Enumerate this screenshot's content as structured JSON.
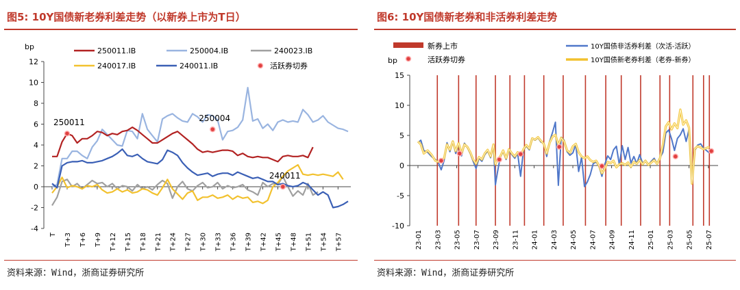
{
  "fig5": {
    "title": "图5: 10Y国债新老券利差走势（以新券上市为T日）",
    "source": "资料来源：Wind，浙商证券研究所",
    "colors": {
      "250011": "#b22222",
      "250004": "#99b4e0",
      "240023": "#a0a0a0",
      "240017": "#f2c12e",
      "240011": "#3a5fb5",
      "marker": "#e04040"
    },
    "chart_data": {
      "type": "line",
      "ylabel": "bp",
      "ylim": [
        -4,
        12
      ],
      "yticks": [
        -4,
        -2,
        0,
        2,
        4,
        6,
        8,
        10,
        12
      ],
      "xlabels": [
        "T",
        "T+3",
        "T+6",
        "T+9",
        "T+12",
        "T+15",
        "T+18",
        "T+21",
        "T+24",
        "T+27",
        "T+30",
        "T+33",
        "T+36",
        "T+39",
        "T+42",
        "T+45",
        "T+48",
        "T+51",
        "T+54",
        "T+57"
      ],
      "xmax": 59,
      "legend": [
        "250011.IB",
        "250004.IB",
        "240023.IB",
        "240017.IB",
        "240011.IB",
        "活跃券切券"
      ],
      "series": [
        {
          "name": "250011.IB",
          "key": "250011",
          "values": [
            2.9,
            2.9,
            4.3,
            5.1,
            4.9,
            4.2,
            4.6,
            4.6,
            4.9,
            5.3,
            5.2,
            4.9,
            5.1,
            5.0,
            5.3,
            5.4,
            5.7,
            5.4,
            5.0,
            4.6,
            4.2,
            4.2,
            4.5,
            4.8,
            5.1,
            5.3,
            4.9,
            4.5,
            4.1,
            3.6,
            3.3,
            3.4,
            3.3,
            3.4,
            3.5,
            3.5,
            3.4,
            3.0,
            3.2,
            2.9,
            2.8,
            2.9,
            2.8,
            2.8,
            2.6,
            2.4,
            2.9,
            3.0,
            2.9,
            2.9,
            3.0,
            2.8,
            3.8
          ]
        },
        {
          "name": "250004.IB",
          "key": "250004",
          "values": [
            0.0,
            0.2,
            2.7,
            2.7,
            3.4,
            3.4,
            3.0,
            2.7,
            3.8,
            4.4,
            5.5,
            5.0,
            4.5,
            4.0,
            3.9,
            5.4,
            5.3,
            4.6,
            7.0,
            5.5,
            4.9,
            4.3,
            6.5,
            6.8,
            7.0,
            6.6,
            6.3,
            6.2,
            7.0,
            6.7,
            6.2,
            6.9,
            6.8,
            6.4,
            4.5,
            5.3,
            5.4,
            5.7,
            6.4,
            9.5,
            6.3,
            6.5,
            5.6,
            6.0,
            5.4,
            6.2,
            6.4,
            6.2,
            6.3,
            6.2,
            7.4,
            6.9,
            6.2,
            6.4,
            6.8,
            6.2,
            5.9,
            5.6,
            5.5,
            5.3
          ]
        },
        {
          "name": "240023.IB",
          "key": "240023",
          "values": [
            -1.8,
            -1.0,
            0.5,
            0.7,
            0.0,
            0.3,
            -0.2,
            0.2,
            0.6,
            0.3,
            0.4,
            0.0,
            0.3,
            -0.2,
            0.1,
            0.0,
            -0.4,
            0.2,
            -0.2,
            0.0,
            -0.3,
            0.2,
            0.6,
            0.3,
            -1.1,
            0.0,
            0.5,
            -0.2,
            -0.4,
            0.1,
            0.4,
            -0.1,
            0.0,
            0.4,
            -0.2,
            0.1,
            -0.1,
            0.0,
            0.2,
            -0.3,
            -0.5,
            -0.8,
            0.4,
            0.0,
            0.3,
            0.2,
            1.0,
            0.0,
            -0.9,
            -0.4,
            -0.8,
            0.3,
            -0.8,
            -0.5
          ]
        },
        {
          "name": "240017.IB",
          "key": "240017",
          "values": [
            -0.6,
            0.0,
            0.9,
            -0.1,
            0.1,
            0.0,
            -0.2,
            0.1,
            0.0,
            0.2,
            -0.3,
            -0.6,
            -0.5,
            -0.2,
            -0.5,
            -0.3,
            -0.6,
            -0.5,
            -0.2,
            -0.3,
            -0.6,
            -0.8,
            -0.1,
            0.7,
            -0.2,
            -0.7,
            -1.2,
            -0.6,
            -0.4,
            -1.3,
            -1.0,
            -1.0,
            -0.8,
            -1.1,
            -1.0,
            -0.8,
            -1.2,
            -0.9,
            -1.1,
            -1.0,
            -1.5,
            -1.4,
            -1.6,
            -1.3,
            0.0,
            0.4,
            1.0,
            1.5,
            1.8,
            2.1,
            1.2,
            1.1,
            1.2,
            1.1,
            1.2,
            1.1,
            1.0,
            1.4,
            0.7
          ]
        },
        {
          "name": "240011.IB",
          "key": "240011",
          "values": [
            0.3,
            -0.1,
            2.0,
            2.3,
            2.4,
            2.4,
            2.5,
            2.3,
            2.3,
            2.4,
            2.5,
            2.7,
            2.9,
            3.2,
            3.6,
            3.0,
            2.9,
            3.1,
            2.7,
            2.4,
            2.3,
            2.2,
            2.6,
            3.5,
            3.3,
            3.0,
            2.3,
            1.8,
            1.4,
            1.1,
            1.2,
            1.3,
            1.0,
            1.2,
            1.3,
            1.3,
            1.1,
            1.4,
            1.2,
            1.0,
            0.8,
            0.9,
            0.7,
            0.5,
            0.5,
            0.2,
            0.3,
            0.1,
            0.0,
            0.1,
            0.4,
            0.2,
            -0.3,
            -0.8,
            -0.5,
            -0.8,
            -2.0,
            -1.9,
            -1.7,
            -1.4
          ]
        }
      ],
      "markers": [
        {
          "label": "250011",
          "x": 3,
          "y": 5.1
        },
        {
          "label": "250004",
          "x": 32,
          "y": 5.5
        },
        {
          "label": "240011",
          "x": 46,
          "y": 0.0
        }
      ]
    }
  },
  "fig6": {
    "title": "图6: 10Y国债新老券和非活券利差走势",
    "source": "资料来源：Wind，浙商证券研究所",
    "colors": {
      "listing": "#c0392b",
      "nonactive": "#4f77c9",
      "newold": "#f2c12e",
      "marker": "#e04040"
    },
    "chart_data": {
      "type": "line",
      "ylabel": "bp",
      "ylim": [
        -10,
        15
      ],
      "yticks": [
        -10,
        -5,
        0,
        5,
        10,
        15
      ],
      "xlabels": [
        "23-01",
        "23-03",
        "23-05",
        "23-07",
        "23-09",
        "23-11",
        "24-01",
        "24-03",
        "24-05",
        "24-07",
        "24-09",
        "24-11",
        "25-01",
        "25-03",
        "25-05",
        "25-07"
      ],
      "legend": [
        "新券上市",
        "活跃券切券",
        "10Y国债非活券利差（次活-活跃）",
        "10Y国债新老券利差（老券-新券）"
      ],
      "listing_months": [
        2.0,
        4.2,
        6.0,
        8.0,
        9.5,
        11.0,
        13.0,
        15.0,
        17.3,
        19.4,
        21.0,
        23.0,
        25.0,
        26.0,
        28.4,
        29.5,
        30.1
      ],
      "switch_points": [
        [
          2.4,
          0.8
        ],
        [
          4.3,
          2.0
        ],
        [
          8.4,
          1.0
        ],
        [
          10.6,
          1.9
        ],
        [
          14.6,
          3.1
        ],
        [
          19.0,
          -0.1
        ],
        [
          26.6,
          1.5
        ],
        [
          30.3,
          2.4
        ]
      ],
      "nonactive_spread": [
        [
          0.0,
          3.8
        ],
        [
          0.3,
          4.2
        ],
        [
          0.6,
          2.5
        ],
        [
          1.0,
          2.2
        ],
        [
          1.4,
          1.5
        ],
        [
          1.8,
          1.0
        ],
        [
          2.1,
          0.5
        ],
        [
          2.4,
          -0.7
        ],
        [
          2.7,
          0.8
        ],
        [
          3.0,
          3.8
        ],
        [
          3.3,
          2.3
        ],
        [
          3.6,
          4.0
        ],
        [
          3.9,
          2.0
        ],
        [
          4.2,
          3.5
        ],
        [
          4.5,
          1.6
        ],
        [
          4.8,
          3.7
        ],
        [
          5.1,
          3.0
        ],
        [
          5.4,
          2.0
        ],
        [
          5.7,
          0.7
        ],
        [
          6.0,
          -0.5
        ],
        [
          6.3,
          1.2
        ],
        [
          6.6,
          0.7
        ],
        [
          6.9,
          1.8
        ],
        [
          7.2,
          2.4
        ],
        [
          7.5,
          1.3
        ],
        [
          7.8,
          3.4
        ],
        [
          8.0,
          -3.2
        ],
        [
          8.2,
          -1.2
        ],
        [
          8.5,
          1.4
        ],
        [
          8.8,
          2.3
        ],
        [
          9.1,
          1.0
        ],
        [
          9.4,
          2.5
        ],
        [
          9.7,
          1.8
        ],
        [
          10.0,
          1.2
        ],
        [
          10.3,
          2.0
        ],
        [
          10.6,
          -1.8
        ],
        [
          10.9,
          2.6
        ],
        [
          11.2,
          3.2
        ],
        [
          11.5,
          2.6
        ],
        [
          11.8,
          4.5
        ],
        [
          12.1,
          4.2
        ],
        [
          12.4,
          4.6
        ],
        [
          12.7,
          3.9
        ],
        [
          13.0,
          3.7
        ],
        [
          13.3,
          1.5
        ],
        [
          13.6,
          4.0
        ],
        [
          13.9,
          5.5
        ],
        [
          14.2,
          7.2
        ],
        [
          14.5,
          -3.3
        ],
        [
          14.8,
          4.7
        ],
        [
          15.1,
          4.2
        ],
        [
          15.4,
          2.3
        ],
        [
          15.7,
          1.7
        ],
        [
          16.0,
          2.1
        ],
        [
          16.3,
          3.5
        ],
        [
          16.6,
          -1.0
        ],
        [
          16.9,
          1.4
        ],
        [
          17.2,
          -3.5
        ],
        [
          17.5,
          -2.7
        ],
        [
          17.8,
          -1.5
        ],
        [
          18.1,
          0.3
        ],
        [
          18.4,
          0.6
        ],
        [
          18.7,
          -0.1
        ],
        [
          19.0,
          -1.8
        ],
        [
          19.3,
          0.2
        ],
        [
          19.6,
          1.6
        ],
        [
          19.9,
          1.0
        ],
        [
          20.2,
          2.6
        ],
        [
          20.5,
          3.2
        ],
        [
          20.8,
          0.1
        ],
        [
          21.1,
          3.3
        ],
        [
          21.4,
          1.0
        ],
        [
          21.7,
          3.0
        ],
        [
          22.0,
          0.4
        ],
        [
          22.3,
          1.5
        ],
        [
          22.6,
          0.3
        ],
        [
          22.9,
          1.8
        ],
        [
          23.2,
          0.4
        ],
        [
          23.5,
          0.8
        ],
        [
          23.8,
          0.1
        ],
        [
          24.1,
          0.7
        ],
        [
          24.4,
          1.2
        ],
        [
          24.7,
          0.3
        ],
        [
          25.0,
          1.3
        ],
        [
          25.3,
          2.2
        ],
        [
          25.6,
          5.4
        ],
        [
          25.9,
          5.9
        ],
        [
          26.2,
          4.4
        ],
        [
          26.5,
          2.5
        ],
        [
          26.8,
          4.5
        ],
        [
          27.1,
          5.1
        ],
        [
          27.4,
          6.1
        ],
        [
          27.7,
          4.0
        ],
        [
          28.0,
          6.0
        ],
        [
          28.3,
          -2.7
        ],
        [
          28.6,
          2.5
        ],
        [
          28.9,
          3.4
        ],
        [
          29.2,
          3.6
        ],
        [
          29.5,
          2.9
        ],
        [
          29.8,
          2.5
        ],
        [
          30.1,
          2.1
        ]
      ],
      "newold_spread": [
        [
          0.0,
          4.0
        ],
        [
          0.3,
          3.5
        ],
        [
          0.6,
          2.0
        ],
        [
          1.0,
          2.5
        ],
        [
          1.4,
          1.8
        ],
        [
          1.8,
          0.8
        ],
        [
          2.1,
          0.6
        ],
        [
          2.4,
          0.8
        ],
        [
          2.7,
          1.2
        ],
        [
          3.0,
          3.5
        ],
        [
          3.3,
          2.6
        ],
        [
          3.6,
          4.0
        ],
        [
          3.9,
          2.4
        ],
        [
          4.2,
          3.7
        ],
        [
          4.5,
          2.0
        ],
        [
          4.8,
          3.5
        ],
        [
          5.1,
          3.1
        ],
        [
          5.4,
          2.2
        ],
        [
          5.7,
          1.0
        ],
        [
          6.0,
          0.3
        ],
        [
          6.3,
          1.4
        ],
        [
          6.6,
          1.0
        ],
        [
          6.9,
          2.0
        ],
        [
          7.2,
          2.6
        ],
        [
          7.5,
          1.5
        ],
        [
          7.8,
          3.5
        ],
        [
          8.0,
          0.2
        ],
        [
          8.2,
          1.0
        ],
        [
          8.5,
          1.5
        ],
        [
          8.8,
          2.5
        ],
        [
          9.1,
          1.2
        ],
        [
          9.4,
          2.7
        ],
        [
          9.7,
          2.0
        ],
        [
          10.0,
          1.5
        ],
        [
          10.3,
          2.2
        ],
        [
          10.6,
          1.6
        ],
        [
          10.9,
          2.7
        ],
        [
          11.2,
          3.4
        ],
        [
          11.5,
          2.8
        ],
        [
          11.8,
          4.5
        ],
        [
          12.1,
          4.3
        ],
        [
          12.4,
          4.7
        ],
        [
          12.7,
          4.1
        ],
        [
          13.0,
          3.6
        ],
        [
          13.3,
          2.0
        ],
        [
          13.6,
          3.8
        ],
        [
          13.9,
          4.8
        ],
        [
          14.2,
          5.1
        ],
        [
          14.5,
          3.4
        ],
        [
          14.8,
          4.6
        ],
        [
          15.1,
          4.0
        ],
        [
          15.4,
          2.5
        ],
        [
          15.7,
          2.1
        ],
        [
          16.0,
          3.2
        ],
        [
          16.3,
          3.6
        ],
        [
          16.6,
          2.2
        ],
        [
          16.9,
          1.5
        ],
        [
          17.2,
          1.2
        ],
        [
          17.5,
          1.5
        ],
        [
          17.8,
          0.9
        ],
        [
          18.1,
          0.6
        ],
        [
          18.4,
          0.8
        ],
        [
          18.7,
          0.0
        ],
        [
          19.0,
          -1.3
        ],
        [
          19.3,
          -0.5
        ],
        [
          19.6,
          0.6
        ],
        [
          19.9,
          0.4
        ],
        [
          20.2,
          0.8
        ],
        [
          20.5,
          -0.3
        ],
        [
          20.8,
          0.2
        ],
        [
          21.1,
          0.4
        ],
        [
          21.4,
          0.1
        ],
        [
          21.7,
          0.5
        ],
        [
          22.0,
          -0.2
        ],
        [
          22.3,
          0.6
        ],
        [
          22.6,
          0.3
        ],
        [
          22.9,
          0.9
        ],
        [
          23.2,
          0.2
        ],
        [
          23.5,
          0.8
        ],
        [
          23.8,
          0.1
        ],
        [
          24.1,
          0.5
        ],
        [
          24.4,
          0.9
        ],
        [
          24.7,
          0.3
        ],
        [
          25.0,
          1.2
        ],
        [
          25.3,
          3.5
        ],
        [
          25.6,
          6.5
        ],
        [
          25.9,
          7.2
        ],
        [
          26.2,
          6.0
        ],
        [
          26.5,
          7.0
        ],
        [
          26.8,
          6.2
        ],
        [
          27.1,
          9.3
        ],
        [
          27.4,
          6.8
        ],
        [
          27.7,
          7.5
        ],
        [
          28.0,
          6.3
        ],
        [
          28.3,
          -3.0
        ],
        [
          28.6,
          2.8
        ],
        [
          28.9,
          3.2
        ],
        [
          29.2,
          3.0
        ],
        [
          29.5,
          2.7
        ],
        [
          29.8,
          2.9
        ],
        [
          30.1,
          3.1
        ]
      ]
    }
  }
}
